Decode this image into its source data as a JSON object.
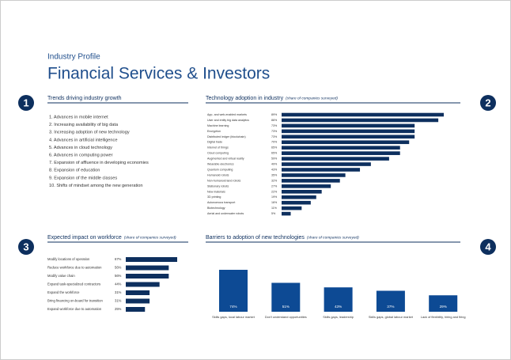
{
  "header": {
    "kicker": "Industry Profile",
    "title": "Financial Services & Investors"
  },
  "sections": [
    {
      "number": "1",
      "title": "Trends driving industry growth"
    },
    {
      "number": "2",
      "title": "Technology adoption in industry",
      "note": "(share of companies surveyed)"
    },
    {
      "number": "3",
      "title": "Expected impact on workforce",
      "note": "(share of companies surveyed)"
    },
    {
      "number": "4",
      "title": "Barriers to adoption of new technologies",
      "note": "(share of companies surveyed)"
    }
  ],
  "trends": [
    "1. Advances in mobile internet",
    "2. Increasing availability of big data",
    "3. Increasing adoption of new technology",
    "4. Advances in artificial intelligence",
    "5. Advances in cloud technology",
    "6. Advances in computing power",
    "7. Expansion of affluence in developing economies",
    "8. Expansion of education",
    "9. Expansion of the middle classes",
    "10. Shifts of mindset among the new generation"
  ],
  "chart_data": [
    {
      "type": "hbar",
      "color": "#0d2f5e",
      "categories": [
        "App- and web-enabled markets",
        "User and entity big data analytics",
        "Machine learning",
        "Encryption",
        "Distributed ledger (blockchain)",
        "Digital trade",
        "Internet of things",
        "Cloud computing",
        "Augmented and virtual reality",
        "Wearable electronics",
        "Quantum computing",
        "Humanoid robots",
        "Non-humanoid land robots",
        "Stationary robots",
        "New materials",
        "3D printing",
        "Autonomous transport",
        "Biotechnology",
        "Aerial and underwater robots"
      ],
      "values": [
        89,
        86,
        73,
        73,
        73,
        70,
        65,
        65,
        59,
        49,
        43,
        35,
        32,
        27,
        22,
        19,
        16,
        11,
        5
      ],
      "value_labels": [
        "89%",
        "86%",
        "73%",
        "73%",
        "73%",
        "70%",
        "65%",
        "65%",
        "59%",
        "49%",
        "43%",
        "35%",
        "32%",
        "27%",
        "22%",
        "19%",
        "16%",
        "11%",
        "5%"
      ]
    },
    {
      "type": "hbar",
      "color": "#0d2f5e",
      "categories": [
        "Modify locations of operation",
        "Reduce workforce due to automation",
        "Modify value chain",
        "Expand task-specialized contractors",
        "Expand the workforce",
        "Bring financing on-board for transition",
        "Expand workforce due to automation"
      ],
      "values": [
        67,
        56,
        56,
        44,
        31,
        31,
        25
      ],
      "value_labels": [
        "67%",
        "56%",
        "56%",
        "44%",
        "31%",
        "31%",
        "25%"
      ]
    },
    {
      "type": "bar",
      "color": "#0d4a94",
      "categories": [
        "Skills gaps, local labour market",
        "Don't understand opportunities",
        "Skills gaps, leadership",
        "Skills gaps, global labour market",
        "Lack of flexibility, hiring and firing"
      ],
      "values": [
        74,
        51,
        43,
        37,
        29
      ],
      "value_labels": [
        "74%",
        "51%",
        "43%",
        "37%",
        "29%"
      ]
    }
  ]
}
